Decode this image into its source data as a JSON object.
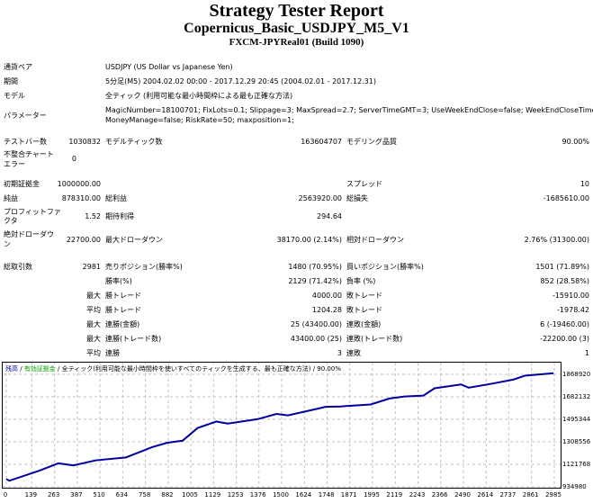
{
  "header": {
    "title": "Strategy Tester Report",
    "subtitle": "Copernicus_Basic_USDJPY_M5_V1",
    "server": "FXCM-JPYReal01 (Build 1090)"
  },
  "info": [
    {
      "label": "通貨ペア",
      "value": "USDJPY (US Dollar vs Japanese Yen)"
    },
    {
      "label": "期間",
      "value": "5分足(M5) 2004.02.02 00:00 - 2017.12.29 20:45 (2004.02.01 - 2017.12.31)"
    },
    {
      "label": "モデル",
      "value": "全ティック (利用可能な最小時間枠による最も正確な方法)"
    },
    {
      "label": "パラメーター",
      "value": "MagicNumber=18100701; FixLots=0.1; Slippage=3; MaxSpread=2.7; ServerTimeGMT=3; UseWeekEndClose=false; WeekEndCloseTime=-1;",
      "value2": "MoneyManage=false; RiskRate=50; maxposition=1;"
    }
  ],
  "stats": {
    "bars_label": "テストバー数",
    "bars": "1030832",
    "ticks_label": "モデルティック数",
    "ticks": "163604707",
    "quality_label": "モデリング品質",
    "quality": "90.00%",
    "mismatch_label1": "不整合チャート",
    "mismatch_label2": "エラー",
    "mismatch": "0",
    "deposit_label": "初期証拠金",
    "deposit": "1000000.00",
    "spread_label": "スプレッド",
    "spread": "10",
    "net_label": "純益",
    "net": "878310.00",
    "gross_profit_label": "総利益",
    "gross_profit": "2563920.00",
    "gross_loss_label": "総損失",
    "gross_loss": "-1685610.00",
    "pf_label1": "プロフィットファ",
    "pf_label2": "クタ",
    "pf": "1.52",
    "expected_label": "期待利得",
    "expected": "294.64",
    "abs_dd_label1": "絶対ドローダウ",
    "abs_dd_label2": "ン",
    "abs_dd": "22700.00",
    "max_dd_label": "最大ドローダウン",
    "max_dd": "38170.00 (2.14%)",
    "rel_dd_label": "相対ドローダウン",
    "rel_dd": "2.76% (31300.00)",
    "trades_label": "総取引数",
    "trades": "2981",
    "short_label": "売りポジション(勝率%)",
    "short": "1480 (70.95%)",
    "long_label": "買いポジション(勝率%)",
    "long": "1501 (71.89%)",
    "rows": [
      {
        "pre": "",
        "l1": "勝率(%)",
        "v1": "2129 (71.42%)",
        "l2": "負率 (%)",
        "v2": "852 (28.58%)"
      },
      {
        "pre": "最大",
        "l1": "勝トレード",
        "v1": "4000.00",
        "l2": "敗トレード",
        "v2": "-15910.00"
      },
      {
        "pre": "平均",
        "l1": "勝トレード",
        "v1": "1204.28",
        "l2": "敗トレード",
        "v2": "-1978.42"
      },
      {
        "pre": "最大",
        "l1": "連勝(金額)",
        "v1": "25 (43400.00)",
        "l2": "連敗(金額)",
        "v2": "6 (-19460.00)"
      },
      {
        "pre": "最大",
        "l1": "連勝(トレード数)",
        "v1": "43400.00 (25)",
        "l2": "連敗(トレード数)",
        "v2": "-22200.00 (3)"
      },
      {
        "pre": "平均",
        "l1": "連勝",
        "v1": "3",
        "l2": "連敗",
        "v2": "1"
      }
    ]
  },
  "chart_data": {
    "type": "line",
    "legend": {
      "balance": "残高",
      "equity": "有効証拠金",
      "model": "全ティック(利用可能な最小時間枠を使いすべてのティックを生成する、最も正確な方法)",
      "quality": "90.00%",
      "sep": " / "
    },
    "colors": {
      "balance": "#0000a0",
      "equity": "#00a000",
      "grid": "#c0c0c0"
    },
    "xlim": [
      0,
      2985
    ],
    "ylim": [
      934980,
      1868920
    ],
    "x_ticks": [
      "0",
      "139",
      "263",
      "387",
      "510",
      "634",
      "758",
      "882",
      "1005",
      "1129",
      "1253",
      "1376",
      "1500",
      "1624",
      "1748",
      "1871",
      "1995",
      "2119",
      "2243",
      "2366",
      "2490",
      "2614",
      "2737",
      "2861",
      "2985"
    ],
    "y_ticks": [
      "1868920",
      "1682132",
      "1495344",
      "1308556",
      "1121768",
      "934980"
    ],
    "grid": true,
    "series": [
      {
        "x": [
          0,
          16,
          180,
          283,
          365,
          488,
          652,
          796,
          878,
          960,
          1042,
          1144,
          1206,
          1370,
          1472,
          1534,
          1657,
          1739,
          1821,
          1985,
          2087,
          2169,
          2272,
          2333,
          2477,
          2518,
          2641,
          2764,
          2825,
          2981
        ],
        "y": [
          1000000,
          985000,
          1069000,
          1130000,
          1113000,
          1155000,
          1179000,
          1265000,
          1301000,
          1318000,
          1423000,
          1477000,
          1460000,
          1497000,
          1540000,
          1528000,
          1570000,
          1599000,
          1602000,
          1619000,
          1668000,
          1685000,
          1692000,
          1753000,
          1785000,
          1758000,
          1790000,
          1826000,
          1858000,
          1878310
        ]
      }
    ]
  }
}
